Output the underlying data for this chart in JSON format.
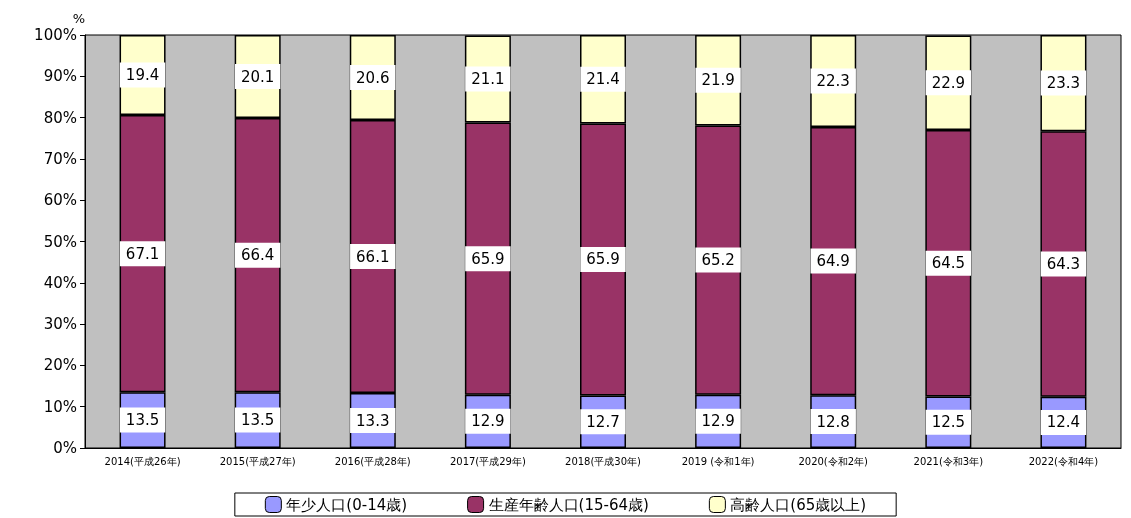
{
  "chart_data": {
    "type": "bar",
    "stacked": true,
    "ylabel": "%",
    "categories": [
      "2014(平成26年)",
      "2015(平成27年)",
      "2016(平成28年)",
      "2017(平成29年)",
      "2018(平成30年)",
      "2019 (令和1年)",
      "2020(令和2年)",
      "2021(令和3年)",
      "2022(令和4年)"
    ],
    "series": [
      {
        "name": "年少人口(0-14歳)",
        "color": "#9999ff",
        "values": [
          13.5,
          13.5,
          13.3,
          12.9,
          12.7,
          12.9,
          12.8,
          12.5,
          12.4
        ]
      },
      {
        "name": "生産年齢人口(15-64歳)",
        "color": "#993366",
        "values": [
          67.1,
          66.4,
          66.1,
          65.9,
          65.9,
          65.2,
          64.9,
          64.5,
          64.3
        ]
      },
      {
        "name": "高齢人口(65歳以上)",
        "color": "#ffffcc",
        "values": [
          19.4,
          20.1,
          20.6,
          21.1,
          21.4,
          21.9,
          22.3,
          22.9,
          23.3
        ]
      }
    ],
    "ylim": [
      0,
      100
    ],
    "yticks": [
      {
        "value": 0,
        "label": "0%"
      },
      {
        "value": 10,
        "label": "10%"
      },
      {
        "value": 20,
        "label": "20%"
      },
      {
        "value": 30,
        "label": "30%"
      },
      {
        "value": 40,
        "label": "40%"
      },
      {
        "value": 50,
        "label": "50%"
      },
      {
        "value": 60,
        "label": "60%"
      },
      {
        "value": 70,
        "label": "70%"
      },
      {
        "value": 80,
        "label": "80%"
      },
      {
        "value": 90,
        "label": "90%"
      },
      {
        "value": 100,
        "label": "100%"
      }
    ],
    "data_labels": true,
    "legend": "bottom",
    "grid": false
  }
}
